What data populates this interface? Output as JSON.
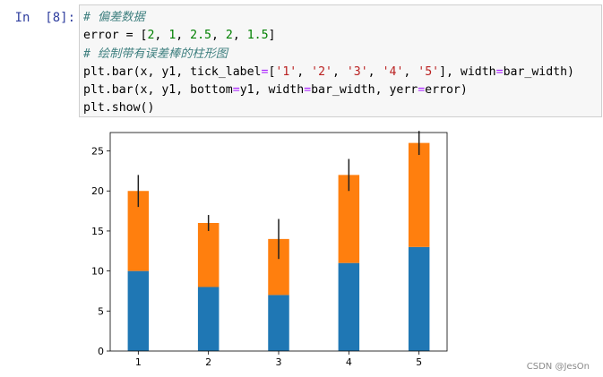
{
  "cell": {
    "prompt": "In  [8]:",
    "comment1": "# 偏差数据",
    "comment2": "# 绘制带有误差棒的柱形图"
  },
  "chart_data": {
    "type": "bar",
    "stacked": true,
    "categories": [
      "1",
      "2",
      "3",
      "4",
      "5"
    ],
    "series": [
      {
        "values": [
          10,
          8,
          7,
          11,
          13
        ],
        "color": "#1f77b4"
      },
      {
        "values": [
          10,
          8,
          7,
          11,
          13
        ],
        "color": "#ff7f0e"
      }
    ],
    "error": [
      2,
      1,
      2.5,
      2,
      1.5
    ],
    "error_color": "#202020",
    "yticks": [
      0,
      5,
      10,
      15,
      20,
      25
    ],
    "ylim": [
      0,
      27.3
    ],
    "xlim": [
      0.6,
      5.4
    ],
    "bar_width": 0.3,
    "grid": false
  },
  "watermark": "CSDN @JesOn"
}
